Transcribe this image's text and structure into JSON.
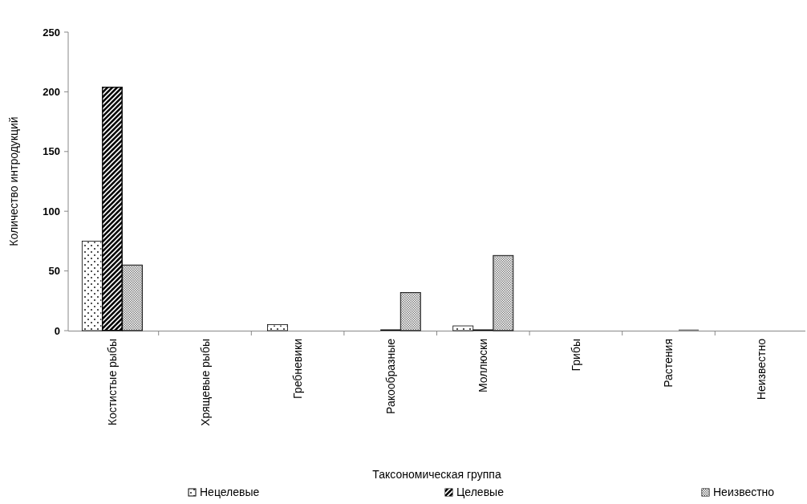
{
  "chart_data": {
    "type": "bar",
    "xlabel": "Таксономическая группа",
    "ylabel": "Количество интродукций",
    "categories": [
      "Костистые рыбы",
      "Хрящевые рыбы",
      "Гребневики",
      "Ракообразные",
      "Моллюски",
      "Грибы",
      "Растения",
      "Неизвестно"
    ],
    "series": [
      {
        "name": "Нецелевые",
        "color": "#ffffff",
        "values": [
          75,
          0,
          5,
          1,
          4,
          0,
          0,
          0
        ]
      },
      {
        "name": "Целевые",
        "color": "#000000",
        "values": [
          204,
          0,
          0,
          1,
          1,
          0,
          0,
          0
        ]
      },
      {
        "name": "Неизвестно",
        "color": "#808080",
        "values": [
          55,
          0,
          0,
          32,
          63,
          0,
          1,
          0
        ]
      }
    ],
    "ylim": [
      0,
      250
    ],
    "yticks": [
      0,
      50,
      100,
      150,
      200,
      250
    ],
    "grid": false,
    "legend": "bottom"
  }
}
